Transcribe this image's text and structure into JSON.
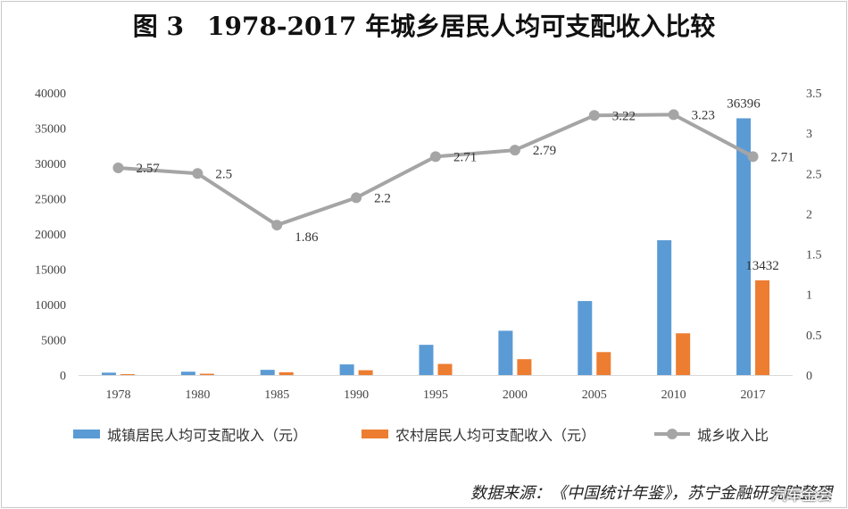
{
  "title": {
    "figure": "图 3",
    "text": "1978-2017 年城乡居民人均可支配收入比较"
  },
  "colors": {
    "urban": "#5b9bd5",
    "rural": "#ed7d31",
    "ratio": "#a5a5a5",
    "grid": "#d9d9d9"
  },
  "chart_data": {
    "type": "bar",
    "categories": [
      "1978",
      "1980",
      "1985",
      "1990",
      "1995",
      "2000",
      "2005",
      "2010",
      "2017"
    ],
    "series": [
      {
        "name": "城镇居民人均可支配收入（元）",
        "type": "bar",
        "axis": "left",
        "values": [
          343,
          478,
          739,
          1510,
          4283,
          6280,
          10493,
          19109,
          36396
        ]
      },
      {
        "name": "农村居民人均可支配收入（元）",
        "type": "bar",
        "axis": "left",
        "values": [
          134,
          191,
          398,
          686,
          1578,
          2253,
          3255,
          5919,
          13432
        ]
      },
      {
        "name": "城乡收入比",
        "type": "line",
        "axis": "right",
        "values": [
          2.57,
          2.5,
          1.86,
          2.2,
          2.71,
          2.79,
          3.22,
          3.23,
          2.71
        ]
      }
    ],
    "bar_value_labels": [
      {
        "category": "2017",
        "series": "城镇居民人均可支配收入（元）",
        "text": "36396"
      },
      {
        "category": "2017",
        "series": "农村居民人均可支配收入（元）",
        "text": "13432"
      }
    ],
    "ratio_labels": [
      "2.57",
      "2.5",
      "1.86",
      "2.2",
      "2.71",
      "2.79",
      "3.22",
      "3.23",
      "2.71"
    ],
    "y_left": {
      "ylim": [
        0,
        40000
      ],
      "ticks": [
        "0",
        "5000",
        "10000",
        "15000",
        "20000",
        "25000",
        "30000",
        "35000",
        "40000"
      ]
    },
    "y_right": {
      "ylim": [
        0,
        3.5
      ],
      "ticks": [
        "0",
        "0.5",
        "1",
        "1.5",
        "2",
        "2.5",
        "3",
        "3.5"
      ]
    },
    "grid": false,
    "legend_position": "bottom"
  },
  "source": "数据来源：《中国统计年鉴》，苏宁金融研究院整理",
  "watermark": "汽车金会"
}
